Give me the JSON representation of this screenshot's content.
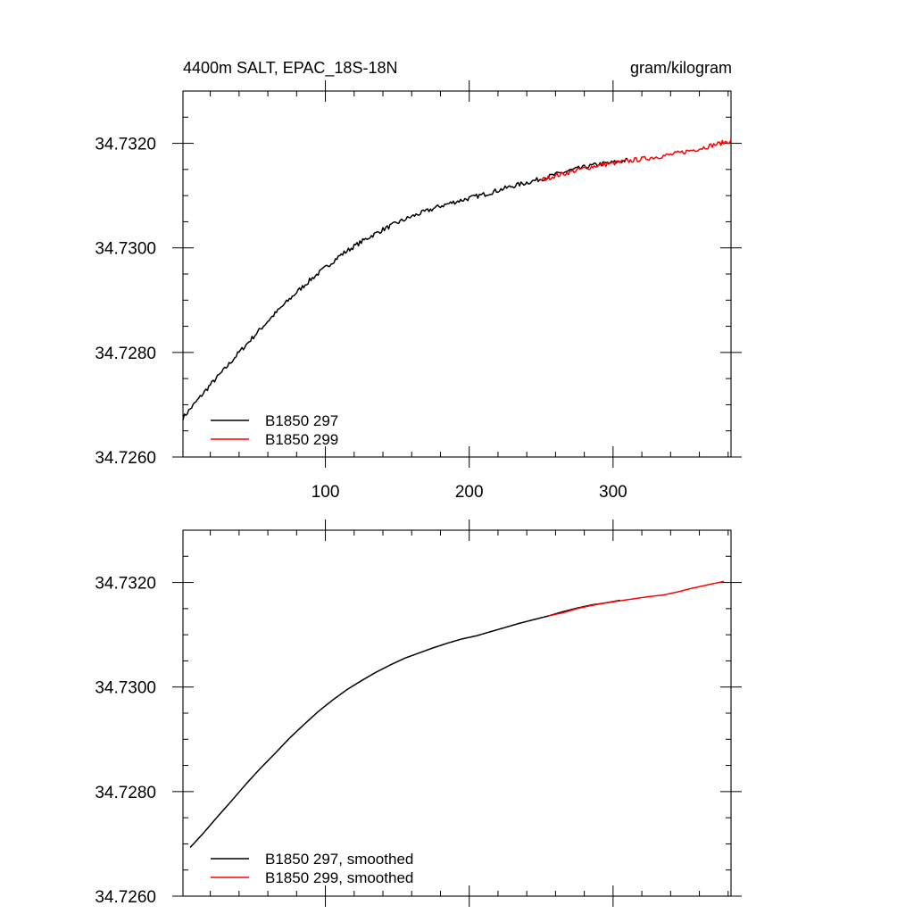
{
  "chart_data": [
    {
      "type": "line",
      "title": "4400m SALT, EPAC_18S-18N",
      "units": "gram/kilogram",
      "xlabel": "",
      "ylabel": "",
      "xlim": [
        1,
        382
      ],
      "ylim": [
        34.726,
        34.733
      ],
      "x_major_ticks": [
        100,
        200,
        300
      ],
      "x_tick_labels": [
        "100",
        "200",
        "300"
      ],
      "y_major_ticks": [
        34.726,
        34.728,
        34.73,
        34.732
      ],
      "y_tick_labels": [
        "34.7260",
        "34.7280",
        "34.7300",
        "34.7320"
      ],
      "grid": false,
      "legend_position": "bottom-left",
      "series": [
        {
          "name": "B1850 297",
          "color": "#000000",
          "noisy": true,
          "x": [
            1,
            10,
            20,
            30,
            40,
            50,
            60,
            70,
            80,
            90,
            100,
            110,
            120,
            130,
            140,
            150,
            160,
            170,
            180,
            190,
            200,
            210,
            220,
            230,
            240,
            250,
            260,
            270,
            280,
            290,
            300,
            310
          ],
          "y": [
            34.72675,
            34.72705,
            34.72738,
            34.72768,
            34.728,
            34.7283,
            34.7286,
            34.72888,
            34.72915,
            34.7294,
            34.72962,
            34.72985,
            34.73003,
            34.7302,
            34.73035,
            34.73048,
            34.7306,
            34.7307,
            34.7308,
            34.73088,
            34.73095,
            34.73102,
            34.7311,
            34.73118,
            34.73125,
            34.73132,
            34.7314,
            34.73148,
            34.73154,
            34.7316,
            34.73163,
            34.73168
          ]
        },
        {
          "name": "B1850 299",
          "color": "#ff0000",
          "noisy": true,
          "x": [
            250,
            260,
            270,
            280,
            290,
            300,
            310,
            320,
            330,
            340,
            350,
            360,
            370,
            382
          ],
          "y": [
            34.7313,
            34.73138,
            34.73145,
            34.73152,
            34.73158,
            34.73162,
            34.73166,
            34.7317,
            34.73174,
            34.73178,
            34.73184,
            34.7319,
            34.73197,
            34.73205
          ]
        }
      ]
    },
    {
      "type": "line",
      "xlim": [
        1,
        382
      ],
      "ylim": [
        34.726,
        34.733
      ],
      "x_major_ticks": [
        100,
        200,
        300
      ],
      "y_major_ticks": [
        34.726,
        34.728,
        34.73,
        34.732
      ],
      "y_tick_labels": [
        "34.7260",
        "34.7280",
        "34.7300",
        "34.7320"
      ],
      "grid": false,
      "legend_position": "bottom-left",
      "series": [
        {
          "name": "B1850 297, smoothed",
          "color": "#000000",
          "noisy": false,
          "x": [
            6,
            15,
            25,
            35,
            45,
            55,
            65,
            75,
            85,
            95,
            105,
            115,
            125,
            135,
            145,
            155,
            165,
            175,
            185,
            195,
            205,
            215,
            225,
            235,
            245,
            255,
            265,
            275,
            285,
            295,
            305
          ],
          "y": [
            34.72693,
            34.7272,
            34.72752,
            34.72783,
            34.72815,
            34.72845,
            34.72873,
            34.72902,
            34.72928,
            34.72953,
            34.72975,
            34.72995,
            34.73012,
            34.73028,
            34.73042,
            34.73055,
            34.73065,
            34.73075,
            34.73084,
            34.73092,
            34.73098,
            34.73106,
            34.73114,
            34.73122,
            34.73129,
            34.73136,
            34.73144,
            34.73151,
            34.73157,
            34.73161,
            34.73166
          ]
        },
        {
          "name": "B1850 299, smoothed",
          "color": "#ff0000",
          "noisy": false,
          "x": [
            255,
            265,
            275,
            285,
            295,
            305,
            315,
            325,
            335,
            345,
            355,
            365,
            377
          ],
          "y": [
            34.73136,
            34.73142,
            34.7315,
            34.73156,
            34.73161,
            34.73165,
            34.73169,
            34.73173,
            34.73176,
            34.73182,
            34.73189,
            34.73195,
            34.73202
          ]
        }
      ]
    }
  ]
}
